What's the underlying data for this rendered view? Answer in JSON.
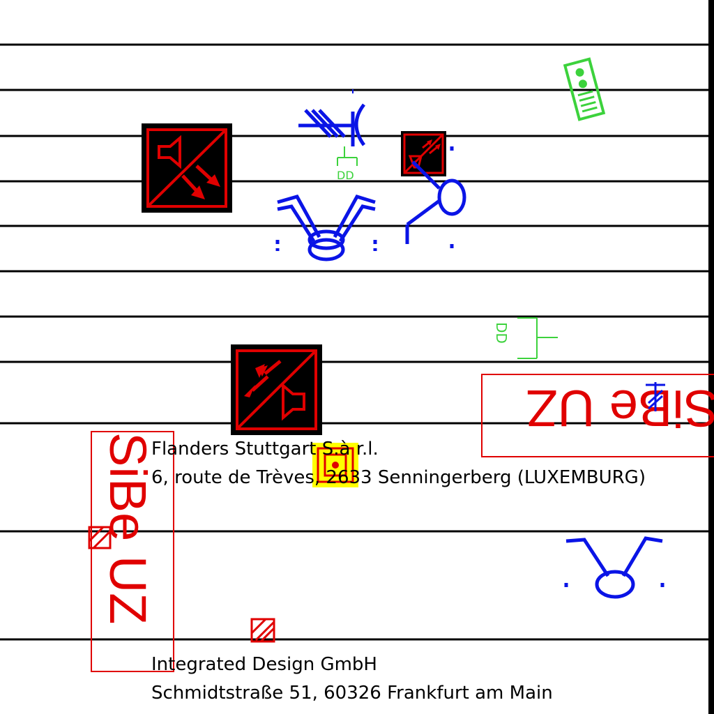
{
  "sheet": {
    "colors": {
      "line": "#000000",
      "alarm_red": "#e00000",
      "wiring_blue": "#0a14e6",
      "device_green": "#3cd23c",
      "highlight_yellow": "#ffff00"
    }
  },
  "addresses": [
    {
      "company": "Flanders Stuttgart S.à r.l.",
      "street": "6, route de Trèves, 2633 Senningerberg (LUXEMBURG)"
    },
    {
      "company": "Integrated Design GmbH",
      "street": "Schmidtstraße 51,  60326 Frankfurt am Main"
    }
  ],
  "labels": {
    "sibe_horizontal": "SiBe UZ",
    "sibe_vertical": "SiBe UZ",
    "junction_top": "DD",
    "junction_mid": "DD"
  },
  "symbols": [
    {
      "name": "horn-strobe-symbol",
      "kind": "alarm-device"
    },
    {
      "name": "horn-strobe-symbol",
      "kind": "alarm-device"
    },
    {
      "name": "horn-strobe-symbol",
      "kind": "alarm-device"
    },
    {
      "name": "bell-symbol",
      "kind": "fire-bell"
    },
    {
      "name": "release-button-symbol",
      "kind": "manual-call-point"
    },
    {
      "name": "control-panel-symbol",
      "kind": "status-panel"
    },
    {
      "name": "smoke-detector-symbol",
      "kind": "detector"
    }
  ]
}
